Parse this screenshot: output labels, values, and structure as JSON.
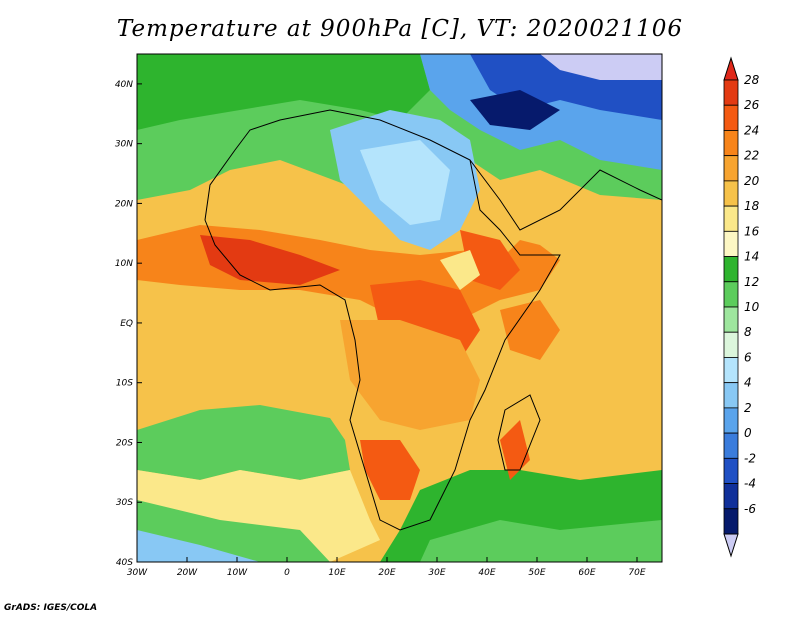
{
  "title": "Temperature at 900hPa [C], VT: 2020021106",
  "footer": "GrADS: IGES/COLA",
  "map": {
    "lon_range": [
      -30,
      75
    ],
    "lat_range": [
      -40,
      45
    ],
    "lat_ticks": [
      "40N",
      "30N",
      "20N",
      "10N",
      "EQ",
      "10S",
      "20S",
      "30S",
      "40S"
    ],
    "lat_values": [
      40,
      30,
      20,
      10,
      0,
      -10,
      -20,
      -30,
      -40
    ],
    "lon_ticks": [
      "30W",
      "20W",
      "10W",
      "0",
      "10E",
      "20E",
      "30E",
      "40E",
      "50E",
      "60E",
      "70E"
    ],
    "lon_values": [
      -30,
      -20,
      -10,
      0,
      10,
      20,
      30,
      40,
      50,
      60,
      70
    ]
  },
  "colorbar": {
    "labels": [
      "28",
      "26",
      "24",
      "22",
      "20",
      "18",
      "16",
      "14",
      "12",
      "10",
      "8",
      "6",
      "4",
      "2",
      "0",
      "-2",
      "-4",
      "-6"
    ],
    "colors": [
      "#e33a12",
      "#f45a12",
      "#f7841a",
      "#f7a430",
      "#f6c24a",
      "#fbe88a",
      "#fdf7c4",
      "#2eb42e",
      "#5ccc5c",
      "#9ee69e",
      "#dcf6dc",
      "#b4e4fc",
      "#88c8f4",
      "#5aa4ec",
      "#3a7cdc",
      "#2050c4",
      "#10309a",
      "#061a6c"
    ],
    "top_color": "#e0281a",
    "bottom_color": "#ccccf4"
  }
}
